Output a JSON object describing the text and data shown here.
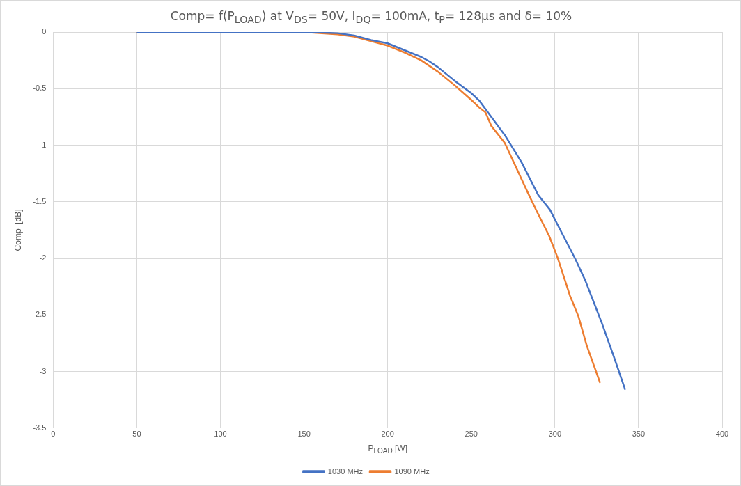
{
  "chart_data": {
    "type": "line",
    "title": "Comp= f(P$_{LOAD}$) at V$_{DS}$= 50V, I$_{DQ}$= 100mA, t$_{P}$= 128µs and δ= 10%",
    "xlabel": "P$_{LOAD}$  [W]",
    "ylabel": "Comp  [dB]",
    "xlim": [
      0,
      400
    ],
    "xticks": [
      0,
      50,
      100,
      150,
      200,
      250,
      300,
      350,
      400
    ],
    "ylim": [
      -3.5,
      0
    ],
    "yticks": [
      -3.5,
      -3,
      -2.5,
      -2,
      -1.5,
      -1,
      -0.5,
      0
    ],
    "grid": true,
    "legend": "bottom",
    "marker": "none",
    "line_style": "solid",
    "series": [
      {
        "name": "1030 MHz",
        "color": "#4472c4",
        "x": [
          50,
          100,
          150,
          170,
          180,
          190,
          200,
          210,
          220,
          225,
          230,
          240,
          250,
          255,
          260,
          265,
          270,
          280,
          290,
          297,
          301.5,
          312,
          318,
          323,
          328,
          335,
          342
        ],
        "values": [
          0,
          0,
          0,
          -0.01,
          -0.03,
          -0.07,
          -0.1,
          -0.16,
          -0.22,
          -0.26,
          -0.31,
          -0.43,
          -0.54,
          -0.61,
          -0.71,
          -0.81,
          -0.91,
          -1.15,
          -1.44,
          -1.57,
          -1.7,
          -2.0,
          -2.19,
          -2.38,
          -2.57,
          -2.86,
          -3.16
        ]
      },
      {
        "name": "1090 MHz",
        "color": "#ed7d31",
        "x": [
          50,
          100,
          150,
          170,
          180,
          190,
          200,
          210,
          220,
          230,
          240,
          250,
          255,
          258.5,
          262,
          270,
          283.5,
          289,
          296.5,
          301.5,
          309,
          314,
          319,
          327
        ],
        "values": [
          0,
          0,
          0,
          -0.02,
          -0.04,
          -0.08,
          -0.12,
          -0.18,
          -0.25,
          -0.35,
          -0.47,
          -0.6,
          -0.67,
          -0.71,
          -0.83,
          -0.98,
          -1.41,
          -1.58,
          -1.8,
          -1.99,
          -2.33,
          -2.51,
          -2.77,
          -3.1
        ]
      }
    ]
  }
}
